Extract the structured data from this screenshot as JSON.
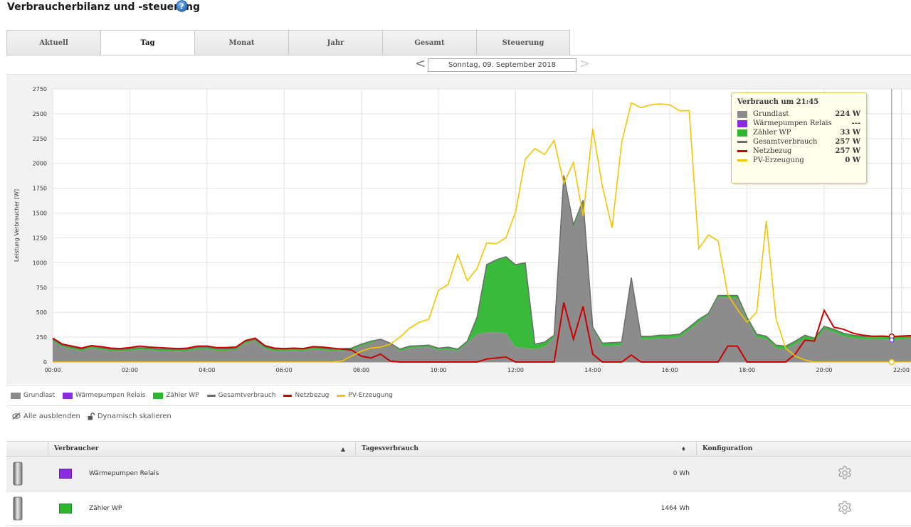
{
  "page": {
    "title": "Verbraucherbilanz und -steuerung",
    "help_icon": "help-circle-icon"
  },
  "tabs": [
    {
      "label": "Aktuell",
      "active": false
    },
    {
      "label": "Tag",
      "active": true
    },
    {
      "label": "Monat",
      "active": false
    },
    {
      "label": "Jahr",
      "active": false
    },
    {
      "label": "Gesamt",
      "active": false
    },
    {
      "label": "Steuerung",
      "active": false
    }
  ],
  "date_nav": {
    "prev": "<",
    "next": ">",
    "date": "Sonntag, 09. September 2018"
  },
  "colors": {
    "grundlast": "#8c8c8c",
    "waermepumpe": "#8a2be2",
    "zaehler_wp": "#2fb62f",
    "gesamtverbrauch": "#6b6b6b",
    "netzbezug": "#cc0000",
    "pv": "#f5c400"
  },
  "chart_data": {
    "type": "area",
    "ylabel": "Leistung Verbraucher [W]",
    "xlabel": "",
    "ylim": [
      0,
      2750
    ],
    "yticks": [
      0,
      250,
      500,
      750,
      1000,
      1250,
      1500,
      1750,
      2000,
      2250,
      2500,
      2750
    ],
    "xlim_hours": [
      0,
      22.6
    ],
    "xticks": [
      "00:00",
      "02:00",
      "04:00",
      "06:00",
      "08:00",
      "10:00",
      "12:00",
      "14:00",
      "16:00",
      "18:00",
      "20:00",
      "22:00"
    ],
    "grid": true,
    "cursor_time": "21:45",
    "series": [
      {
        "name": "Grundlast",
        "kind": "area",
        "x": [
          0,
          0.25,
          0.5,
          0.75,
          1,
          1.25,
          1.5,
          1.75,
          2,
          2.25,
          2.5,
          2.75,
          3,
          3.25,
          3.5,
          3.75,
          4,
          4.25,
          4.5,
          4.75,
          5,
          5.25,
          5.5,
          5.75,
          6,
          6.25,
          6.5,
          6.75,
          7,
          7.25,
          7.5,
          7.75,
          8,
          8.25,
          8.5,
          8.75,
          9,
          9.25,
          9.5,
          9.75,
          10,
          10.25,
          10.5,
          10.75,
          11,
          11.25,
          11.5,
          11.75,
          12,
          12.25,
          12.5,
          12.75,
          13,
          13.25,
          13.5,
          13.75,
          14,
          14.25,
          14.5,
          14.75,
          15,
          15.25,
          15.5,
          15.75,
          16,
          16.25,
          16.5,
          16.75,
          17,
          17.25,
          17.5,
          17.75,
          18,
          18.25,
          18.5,
          18.75,
          19,
          19.25,
          19.5,
          19.75,
          20,
          20.25,
          20.5,
          20.75,
          21,
          21.25,
          21.5,
          21.75,
          22,
          22.25,
          22.6
        ],
        "y": [
          210,
          150,
          130,
          110,
          140,
          125,
          110,
          105,
          115,
          125,
          120,
          110,
          110,
          105,
          110,
          130,
          130,
          115,
          115,
          120,
          190,
          210,
          135,
          110,
          110,
          115,
          110,
          130,
          120,
          110,
          115,
          120,
          160,
          190,
          230,
          190,
          110,
          140,
          145,
          150,
          120,
          130,
          110,
          190,
          280,
          300,
          300,
          290,
          150,
          140,
          130,
          150,
          250,
          1850,
          1350,
          1600,
          330,
          160,
          165,
          170,
          830,
          230,
          230,
          240,
          240,
          250,
          320,
          400,
          470,
          650,
          650,
          640,
          420,
          250,
          230,
          140,
          130,
          180,
          230,
          200,
          330,
          300,
          260,
          240,
          230,
          230,
          230,
          224,
          230,
          235,
          230
        ]
      },
      {
        "name": "Wärmepumpen Relais",
        "kind": "area",
        "values_note_only": true
      },
      {
        "name": "Zähler WP",
        "kind": "area",
        "x": [
          0,
          0.25,
          0.5,
          0.75,
          1,
          1.25,
          1.5,
          1.75,
          2,
          2.25,
          2.5,
          2.75,
          3,
          3.25,
          3.5,
          3.75,
          4,
          4.25,
          4.5,
          4.75,
          5,
          5.25,
          5.5,
          5.75,
          6,
          6.25,
          6.5,
          6.75,
          7,
          7.25,
          7.5,
          7.75,
          8,
          8.25,
          8.5,
          8.75,
          9,
          9.25,
          9.5,
          9.75,
          10,
          10.25,
          10.5,
          10.75,
          11,
          11.25,
          11.5,
          11.75,
          12,
          12.25,
          12.5,
          12.75,
          13,
          13.25,
          13.5,
          13.75,
          14,
          14.25,
          14.5,
          14.75,
          15,
          15.25,
          15.5,
          15.75,
          16,
          16.25,
          16.5,
          16.75,
          17,
          17.25,
          17.5,
          17.75,
          18,
          18.25,
          18.5,
          18.75,
          19,
          19.25,
          19.5,
          19.75,
          20,
          20.25,
          20.5,
          20.75,
          21,
          21.25,
          21.5,
          21.75,
          22,
          22.25,
          22.6
        ],
        "y": [
          20,
          20,
          20,
          20,
          20,
          20,
          20,
          20,
          20,
          20,
          20,
          20,
          20,
          20,
          20,
          20,
          20,
          20,
          20,
          20,
          20,
          20,
          20,
          20,
          20,
          20,
          20,
          20,
          20,
          20,
          20,
          20,
          20,
          20,
          0,
          0,
          20,
          20,
          20,
          20,
          20,
          20,
          20,
          20,
          170,
          680,
          730,
          770,
          830,
          860,
          50,
          50,
          20,
          30,
          30,
          30,
          20,
          30,
          30,
          30,
          20,
          30,
          30,
          30,
          30,
          30,
          30,
          30,
          20,
          20,
          20,
          30,
          30,
          30,
          30,
          30,
          30,
          30,
          40,
          40,
          30,
          30,
          30,
          30,
          30,
          30,
          33,
          33,
          33,
          33,
          33
        ]
      },
      {
        "name": "Gesamtverbrauch",
        "kind": "line"
      },
      {
        "name": "Netzbezug",
        "kind": "line",
        "x": [
          0,
          0.25,
          0.5,
          0.75,
          1,
          1.25,
          1.5,
          1.75,
          2,
          2.25,
          2.5,
          2.75,
          3,
          3.25,
          3.5,
          3.75,
          4,
          4.25,
          4.5,
          4.75,
          5,
          5.25,
          5.5,
          5.75,
          6,
          6.25,
          6.5,
          6.75,
          7,
          7.25,
          7.5,
          7.75,
          8,
          8.25,
          8.5,
          8.75,
          9,
          9.25,
          9.5,
          9.75,
          10,
          10.25,
          10.5,
          10.75,
          11,
          11.25,
          11.5,
          11.75,
          12,
          12.25,
          12.5,
          12.75,
          13,
          13.25,
          13.5,
          13.75,
          14,
          14.25,
          14.5,
          14.75,
          15,
          15.25,
          15.5,
          15.75,
          16,
          16.25,
          16.5,
          16.75,
          17,
          17.25,
          17.5,
          17.75,
          18,
          18.25,
          18.5,
          18.75,
          19,
          19.25,
          19.5,
          19.75,
          20,
          20.25,
          20.5,
          20.75,
          21,
          21.25,
          21.5,
          21.75,
          22,
          22.25,
          22.6
        ],
        "y": [
          240,
          180,
          160,
          140,
          165,
          155,
          140,
          135,
          145,
          160,
          150,
          145,
          140,
          135,
          140,
          160,
          160,
          145,
          145,
          150,
          215,
          240,
          165,
          140,
          135,
          140,
          135,
          155,
          150,
          140,
          130,
          120,
          60,
          40,
          80,
          10,
          0,
          0,
          0,
          0,
          0,
          0,
          0,
          0,
          0,
          30,
          40,
          50,
          0,
          0,
          0,
          0,
          0,
          600,
          230,
          560,
          80,
          0,
          0,
          0,
          70,
          0,
          0,
          0,
          0,
          0,
          0,
          0,
          0,
          0,
          160,
          160,
          0,
          0,
          0,
          0,
          0,
          80,
          220,
          210,
          520,
          350,
          330,
          290,
          270,
          260,
          260,
          257,
          260,
          265,
          265
        ]
      },
      {
        "name": "PV-Erzeugung",
        "kind": "line",
        "x": [
          0,
          0.25,
          0.5,
          0.75,
          1,
          1.25,
          1.5,
          1.75,
          2,
          2.25,
          2.5,
          2.75,
          3,
          3.25,
          3.5,
          3.75,
          4,
          4.25,
          4.5,
          4.75,
          5,
          5.25,
          5.5,
          5.75,
          6,
          6.25,
          6.5,
          6.75,
          7,
          7.25,
          7.5,
          7.75,
          8,
          8.25,
          8.5,
          8.75,
          9,
          9.25,
          9.5,
          9.75,
          10,
          10.25,
          10.5,
          10.75,
          11,
          11.25,
          11.5,
          11.75,
          12,
          12.25,
          12.5,
          12.75,
          13,
          13.25,
          13.5,
          13.75,
          14,
          14.25,
          14.5,
          14.75,
          15,
          15.25,
          15.5,
          15.75,
          16,
          16.25,
          16.5,
          16.75,
          17,
          17.25,
          17.5,
          17.75,
          18,
          18.25,
          18.5,
          18.75,
          19,
          19.25,
          19.5,
          19.75,
          20,
          20.25,
          20.5,
          20.75,
          21,
          21.25,
          21.5,
          21.75,
          22,
          22.25,
          22.6
        ],
        "y": [
          0,
          0,
          0,
          0,
          0,
          0,
          0,
          0,
          0,
          0,
          0,
          0,
          0,
          0,
          0,
          0,
          0,
          0,
          0,
          0,
          0,
          0,
          0,
          0,
          0,
          0,
          0,
          0,
          0,
          0,
          10,
          60,
          110,
          140,
          150,
          180,
          250,
          340,
          400,
          430,
          720,
          780,
          1080,
          820,
          940,
          1200,
          1190,
          1250,
          1510,
          2040,
          2150,
          2090,
          2230,
          1800,
          2010,
          1470,
          2350,
          1770,
          1350,
          2210,
          2610,
          2560,
          2590,
          2600,
          2590,
          2530,
          2530,
          1140,
          1280,
          1220,
          680,
          530,
          400,
          500,
          1420,
          440,
          140,
          60,
          20,
          0,
          0,
          0,
          0,
          0,
          0,
          0,
          0,
          0,
          0,
          0,
          0
        ]
      }
    ]
  },
  "tooltip": {
    "title": "Verbrauch um 21:45",
    "rows": [
      {
        "label": "Grundlast",
        "value": "224 W",
        "style": "box",
        "color": "#8c8c8c"
      },
      {
        "label": "Wärmepumpen Relais",
        "value": "---",
        "style": "box",
        "color": "#8a2be2"
      },
      {
        "label": "Zähler WP",
        "value": "33 W",
        "style": "box",
        "color": "#2fb62f"
      },
      {
        "label": "Gesamtverbrauch",
        "value": "257 W",
        "style": "line",
        "color": "#6b6b6b"
      },
      {
        "label": "Netzbezug",
        "value": "257 W",
        "style": "line",
        "color": "#cc0000"
      },
      {
        "label": "PV-Erzeugung",
        "value": "0 W",
        "style": "line",
        "color": "#f5c400"
      }
    ]
  },
  "legend": [
    {
      "label": "Grundlast",
      "style": "box",
      "color": "#8c8c8c"
    },
    {
      "label": "Wärmepumpen Relais",
      "style": "box",
      "color": "#8a2be2"
    },
    {
      "label": "Zähler WP",
      "style": "box",
      "color": "#2fb62f"
    },
    {
      "label": "Gesamtverbrauch",
      "style": "line",
      "color": "#6b6b6b"
    },
    {
      "label": "Netzbezug",
      "style": "line",
      "color": "#cc0000"
    },
    {
      "label": "PV-Erzeugung",
      "style": "line",
      "color": "#f5c400"
    }
  ],
  "controls": {
    "hide_all": "Alle ausblenden",
    "dynamic_scale": "Dynamisch skalieren"
  },
  "table": {
    "headers": [
      "",
      "Verbraucher",
      "Tagesverbrauch",
      "Konfiguration"
    ],
    "sort_marks": [
      "▲",
      "♦"
    ],
    "rows": [
      {
        "name": "Wärmepumpen Relais",
        "color": "#8a2be2",
        "consumption": "0 Wh"
      },
      {
        "name": "Zähler WP",
        "color": "#2fb62f",
        "consumption": "1464 Wh"
      }
    ]
  }
}
